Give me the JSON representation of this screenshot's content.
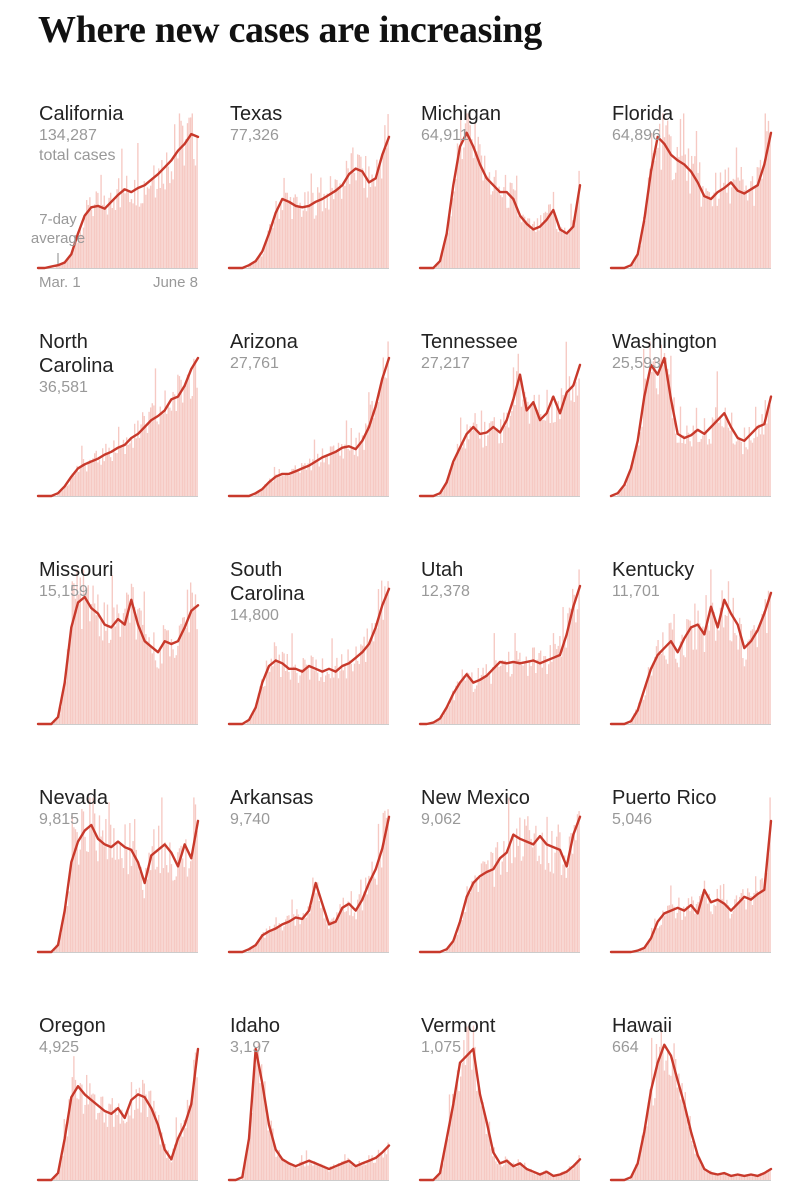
{
  "title": "Where new cases are increasing",
  "annotations": {
    "total_cases": "total cases",
    "avg_line1": "7-day",
    "avg_line2": "average",
    "start_date": "Mar. 1",
    "end_date": "June 8"
  },
  "colors": {
    "line": "#c8392b",
    "bar": "#f6c9c3",
    "baseline": "#cccccc"
  },
  "chart_data": [
    {
      "type": "line",
      "state": "California",
      "name_lines": [
        "California"
      ],
      "total": "134,287",
      "x_range": [
        "Mar. 1",
        "June 8"
      ],
      "seven_day_average": [
        0,
        0,
        0.01,
        0.02,
        0.04,
        0.1,
        0.25,
        0.38,
        0.44,
        0.45,
        0.43,
        0.48,
        0.53,
        0.57,
        0.55,
        0.58,
        0.6,
        0.64,
        0.68,
        0.73,
        0.78,
        0.85,
        0.9,
        0.97,
        0.95
      ]
    },
    {
      "type": "line",
      "state": "Texas",
      "name_lines": [
        "Texas"
      ],
      "total": "77,326",
      "x_range": [
        "Mar. 1",
        "June 8"
      ],
      "seven_day_average": [
        0,
        0,
        0,
        0.02,
        0.05,
        0.12,
        0.25,
        0.4,
        0.5,
        0.48,
        0.45,
        0.44,
        0.45,
        0.48,
        0.5,
        0.53,
        0.56,
        0.6,
        0.68,
        0.72,
        0.7,
        0.62,
        0.65,
        0.82,
        0.95
      ]
    },
    {
      "type": "line",
      "state": "Michigan",
      "name_lines": [
        "Michigan"
      ],
      "total": "64,911",
      "x_range": [
        "Mar. 1",
        "June 8"
      ],
      "seven_day_average": [
        0,
        0,
        0,
        0.05,
        0.25,
        0.6,
        0.88,
        0.98,
        0.88,
        0.75,
        0.65,
        0.6,
        0.55,
        0.55,
        0.5,
        0.38,
        0.32,
        0.28,
        0.3,
        0.35,
        0.42,
        0.28,
        0.25,
        0.3,
        0.6
      ]
    },
    {
      "type": "line",
      "state": "Florida",
      "name_lines": [
        "Florida"
      ],
      "total": "64,896",
      "x_range": [
        "Mar. 1",
        "June 8"
      ],
      "seven_day_average": [
        0,
        0,
        0,
        0.02,
        0.1,
        0.35,
        0.7,
        0.95,
        0.9,
        0.82,
        0.78,
        0.75,
        0.7,
        0.62,
        0.52,
        0.5,
        0.55,
        0.58,
        0.62,
        0.56,
        0.54,
        0.57,
        0.6,
        0.75,
        0.98
      ]
    },
    {
      "type": "line",
      "state": "North Carolina",
      "name_lines": [
        "North",
        "Carolina"
      ],
      "total": "36,581",
      "x_range": [
        "Mar. 1",
        "June 8"
      ],
      "seven_day_average": [
        0,
        0,
        0,
        0.02,
        0.07,
        0.14,
        0.2,
        0.23,
        0.25,
        0.27,
        0.3,
        0.32,
        0.35,
        0.37,
        0.42,
        0.45,
        0.5,
        0.55,
        0.58,
        0.62,
        0.7,
        0.72,
        0.8,
        0.92,
        1.0
      ]
    },
    {
      "type": "line",
      "state": "Arizona",
      "name_lines": [
        "Arizona"
      ],
      "total": "27,761",
      "x_range": [
        "Mar. 1",
        "June 8"
      ],
      "seven_day_average": [
        0,
        0,
        0,
        0,
        0.02,
        0.05,
        0.1,
        0.14,
        0.16,
        0.16,
        0.18,
        0.2,
        0.22,
        0.25,
        0.28,
        0.3,
        0.32,
        0.35,
        0.36,
        0.34,
        0.4,
        0.5,
        0.65,
        0.85,
        1.0
      ]
    },
    {
      "type": "line",
      "state": "Tennessee",
      "name_lines": [
        "Tennessee"
      ],
      "total": "27,217",
      "x_range": [
        "Mar. 1",
        "June 8"
      ],
      "seven_day_average": [
        0,
        0,
        0,
        0.02,
        0.1,
        0.25,
        0.35,
        0.45,
        0.5,
        0.45,
        0.46,
        0.5,
        0.46,
        0.55,
        0.7,
        0.88,
        0.62,
        0.68,
        0.55,
        0.6,
        0.72,
        0.6,
        0.75,
        0.8,
        0.95
      ]
    },
    {
      "type": "line",
      "state": "Washington",
      "name_lines": [
        "Washington"
      ],
      "total": "25,593",
      "x_range": [
        "Mar. 1",
        "June 8"
      ],
      "seven_day_average": [
        0,
        0.02,
        0.08,
        0.2,
        0.4,
        0.72,
        0.95,
        0.88,
        1.0,
        0.7,
        0.45,
        0.42,
        0.44,
        0.48,
        0.45,
        0.5,
        0.55,
        0.6,
        0.5,
        0.42,
        0.4,
        0.45,
        0.5,
        0.52,
        0.72
      ]
    },
    {
      "type": "line",
      "state": "Missouri",
      "name_lines": [
        "Missouri"
      ],
      "total": "15,159",
      "x_range": [
        "Mar. 1",
        "June 8"
      ],
      "seven_day_average": [
        0,
        0,
        0,
        0.05,
        0.3,
        0.7,
        0.88,
        0.92,
        0.84,
        0.8,
        0.72,
        0.7,
        0.76,
        0.72,
        0.9,
        0.72,
        0.6,
        0.56,
        0.52,
        0.6,
        0.58,
        0.6,
        0.7,
        0.82,
        0.86
      ]
    },
    {
      "type": "line",
      "state": "South Carolina",
      "name_lines": [
        "South",
        "Carolina"
      ],
      "total": "14,800",
      "x_range": [
        "Mar. 1",
        "June 8"
      ],
      "seven_day_average": [
        0,
        0,
        0,
        0.03,
        0.12,
        0.3,
        0.42,
        0.46,
        0.44,
        0.4,
        0.4,
        0.38,
        0.42,
        0.4,
        0.38,
        0.4,
        0.38,
        0.42,
        0.44,
        0.48,
        0.52,
        0.58,
        0.7,
        0.86,
        0.98
      ]
    },
    {
      "type": "line",
      "state": "Utah",
      "name_lines": [
        "Utah"
      ],
      "total": "12,378",
      "x_range": [
        "Mar. 1",
        "June 8"
      ],
      "seven_day_average": [
        0,
        0,
        0.01,
        0.04,
        0.12,
        0.22,
        0.3,
        0.36,
        0.3,
        0.32,
        0.35,
        0.4,
        0.45,
        0.44,
        0.45,
        0.44,
        0.45,
        0.46,
        0.44,
        0.46,
        0.48,
        0.5,
        0.65,
        0.85,
        1.0
      ]
    },
    {
      "type": "line",
      "state": "Kentucky",
      "name_lines": [
        "Kentucky"
      ],
      "total": "11,701",
      "x_range": [
        "Mar. 1",
        "June 8"
      ],
      "seven_day_average": [
        0,
        0,
        0,
        0.02,
        0.1,
        0.25,
        0.4,
        0.5,
        0.55,
        0.6,
        0.52,
        0.62,
        0.7,
        0.72,
        0.65,
        0.85,
        0.7,
        0.9,
        0.8,
        0.72,
        0.55,
        0.6,
        0.68,
        0.8,
        0.95
      ]
    },
    {
      "type": "line",
      "state": "Nevada",
      "name_lines": [
        "Nevada"
      ],
      "total": "9,815",
      "x_range": [
        "Mar. 1",
        "June 8"
      ],
      "seven_day_average": [
        0,
        0,
        0,
        0.05,
        0.3,
        0.65,
        0.8,
        0.88,
        0.92,
        0.82,
        0.78,
        0.76,
        0.8,
        0.76,
        0.74,
        0.65,
        0.5,
        0.7,
        0.74,
        0.78,
        0.72,
        0.62,
        0.78,
        0.68,
        0.95
      ]
    },
    {
      "type": "line",
      "state": "Arkansas",
      "name_lines": [
        "Arkansas"
      ],
      "total": "9,740",
      "x_range": [
        "Mar. 1",
        "June 8"
      ],
      "seven_day_average": [
        0,
        0,
        0,
        0.02,
        0.05,
        0.12,
        0.15,
        0.17,
        0.2,
        0.22,
        0.25,
        0.24,
        0.3,
        0.5,
        0.35,
        0.2,
        0.22,
        0.32,
        0.35,
        0.3,
        0.38,
        0.5,
        0.6,
        0.75,
        0.98
      ]
    },
    {
      "type": "line",
      "state": "New Mexico",
      "name_lines": [
        "New Mexico"
      ],
      "total": "9,062",
      "x_range": [
        "Mar. 1",
        "June 8"
      ],
      "seven_day_average": [
        0,
        0,
        0,
        0,
        0.02,
        0.08,
        0.22,
        0.4,
        0.5,
        0.55,
        0.58,
        0.6,
        0.68,
        0.72,
        0.85,
        0.82,
        0.8,
        0.78,
        0.84,
        0.78,
        0.76,
        0.74,
        0.62,
        0.85,
        0.98
      ]
    },
    {
      "type": "line",
      "state": "Puerto Rico",
      "name_lines": [
        "Puerto Rico"
      ],
      "total": "5,046",
      "x_range": [
        "Mar. 1",
        "June 8"
      ],
      "seven_day_average": [
        0,
        0,
        0,
        0,
        0.01,
        0.03,
        0.1,
        0.22,
        0.28,
        0.3,
        0.32,
        0.3,
        0.34,
        0.28,
        0.45,
        0.36,
        0.38,
        0.35,
        0.3,
        0.35,
        0.4,
        0.38,
        0.42,
        0.45,
        0.95
      ]
    },
    {
      "type": "line",
      "state": "Oregon",
      "name_lines": [
        "Oregon"
      ],
      "total": "4,925",
      "x_range": [
        "Mar. 1",
        "June 8"
      ],
      "seven_day_average": [
        0,
        0,
        0,
        0.05,
        0.3,
        0.6,
        0.68,
        0.62,
        0.58,
        0.54,
        0.5,
        0.48,
        0.52,
        0.45,
        0.58,
        0.62,
        0.6,
        0.52,
        0.4,
        0.22,
        0.15,
        0.3,
        0.4,
        0.55,
        0.95
      ]
    },
    {
      "type": "line",
      "state": "Idaho",
      "name_lines": [
        "Idaho"
      ],
      "total": "3,197",
      "x_range": [
        "Mar. 1",
        "June 8"
      ],
      "seven_day_average": [
        0,
        0,
        0.02,
        0.3,
        0.95,
        0.7,
        0.4,
        0.22,
        0.15,
        0.12,
        0.1,
        0.12,
        0.14,
        0.12,
        0.1,
        0.08,
        0.1,
        0.12,
        0.14,
        0.1,
        0.12,
        0.14,
        0.16,
        0.2,
        0.25
      ]
    },
    {
      "type": "line",
      "state": "Vermont",
      "name_lines": [
        "Vermont"
      ],
      "total": "1,075",
      "x_range": [
        "Mar. 1",
        "June 8"
      ],
      "seven_day_average": [
        0,
        0,
        0,
        0.05,
        0.3,
        0.55,
        0.85,
        0.9,
        0.95,
        0.62,
        0.42,
        0.2,
        0.12,
        0.14,
        0.1,
        0.12,
        0.08,
        0.06,
        0.04,
        0.06,
        0.03,
        0.04,
        0.06,
        0.1,
        0.15
      ]
    },
    {
      "type": "line",
      "state": "Hawaii",
      "name_lines": [
        "Hawaii"
      ],
      "total": "664",
      "x_range": [
        "Mar. 1",
        "June 8"
      ],
      "seven_day_average": [
        0,
        0,
        0,
        0.02,
        0.12,
        0.35,
        0.65,
        0.85,
        0.98,
        0.9,
        0.72,
        0.55,
        0.35,
        0.18,
        0.08,
        0.05,
        0.04,
        0.05,
        0.03,
        0.04,
        0.03,
        0.04,
        0.03,
        0.05,
        0.08
      ]
    }
  ]
}
